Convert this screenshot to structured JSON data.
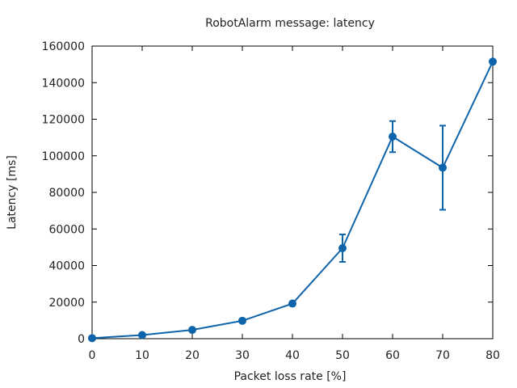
{
  "chart_data": {
    "type": "line",
    "title": "RobotAlarm message: latency",
    "xlabel": "Packet loss rate [%]",
    "ylabel": "Latency [ms]",
    "xlim": [
      0,
      80
    ],
    "ylim": [
      0,
      160000
    ],
    "x_ticks": [
      0,
      10,
      20,
      30,
      40,
      50,
      60,
      70,
      80
    ],
    "y_ticks": [
      0,
      20000,
      40000,
      60000,
      80000,
      100000,
      120000,
      140000,
      160000
    ],
    "grid": false,
    "legend": "none",
    "series": [
      {
        "color": "#0e64aa",
        "x": [
          0,
          10,
          20,
          30,
          40,
          50,
          60,
          70,
          80
        ],
        "y": [
          300,
          2000,
          4800,
          9800,
          19200,
          49500,
          110500,
          93500,
          151500
        ],
        "err_low": [
          0,
          0,
          0,
          0,
          0,
          42000,
          102000,
          70500,
          0
        ],
        "err_high": [
          0,
          0,
          0,
          0,
          0,
          57000,
          119000,
          116500,
          0
        ]
      }
    ]
  }
}
